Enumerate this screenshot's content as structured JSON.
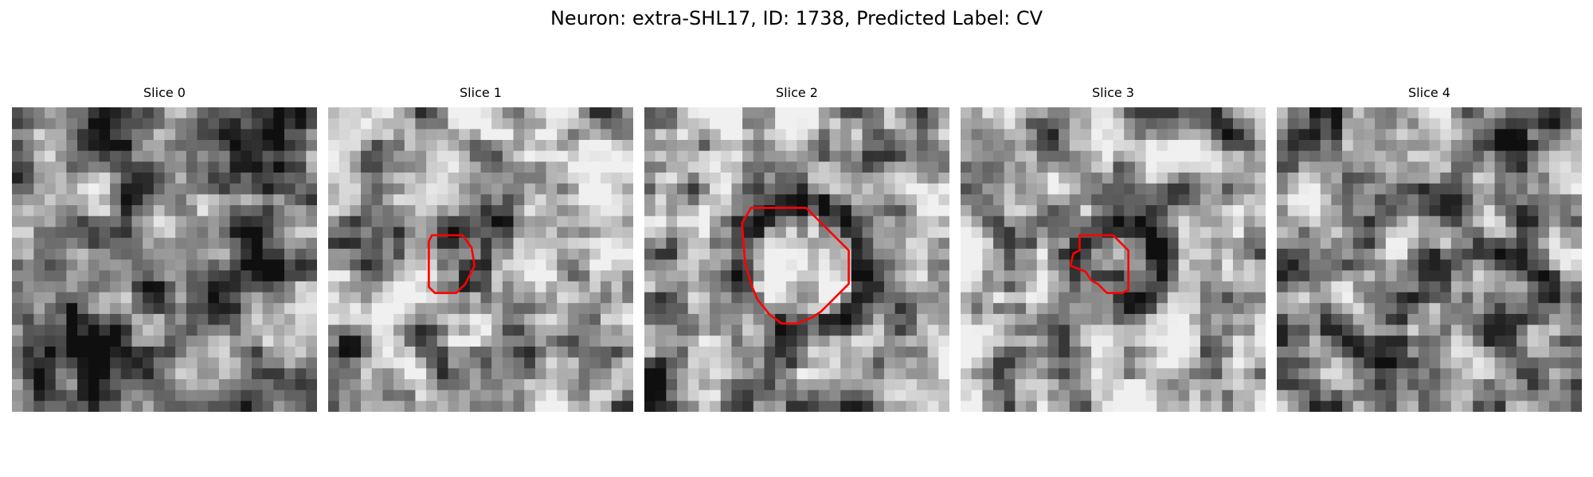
{
  "figure": {
    "title": "Neuron: extra-SHL17, ID: 1738, Predicted Label: CV"
  },
  "panels": [
    {
      "title": "Slice 0",
      "has_contour": false
    },
    {
      "title": "Slice 1",
      "has_contour": true
    },
    {
      "title": "Slice 2",
      "has_contour": true
    },
    {
      "title": "Slice 3",
      "has_contour": true
    },
    {
      "title": "Slice 4",
      "has_contour": false
    }
  ],
  "colors": {
    "contour": "#ff0000",
    "background": "#ffffff"
  }
}
